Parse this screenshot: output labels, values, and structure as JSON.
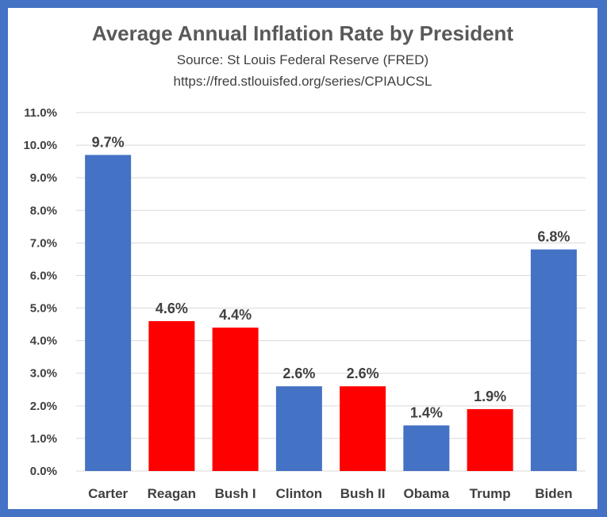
{
  "chart_data": {
    "type": "bar",
    "title": "Average Annual Inflation Rate by President",
    "subtitle_lines": [
      "Source: St Louis Federal Reserve (FRED)",
      "https://fred.stlouisfed.org/series/CPIAUCSL"
    ],
    "categories": [
      "Carter",
      "Reagan",
      "Bush I",
      "Clinton",
      "Bush II",
      "Obama",
      "Trump",
      "Biden"
    ],
    "values": [
      9.7,
      4.6,
      4.4,
      2.6,
      2.6,
      1.4,
      1.9,
      6.8
    ],
    "data_labels": [
      "9.7%",
      "4.6%",
      "4.4%",
      "2.6%",
      "2.6%",
      "1.4%",
      "1.9%",
      "6.8%"
    ],
    "bar_colors": [
      "#4472c4",
      "#ff0000",
      "#ff0000",
      "#4472c4",
      "#ff0000",
      "#4472c4",
      "#ff0000",
      "#4472c4"
    ],
    "xlabel": "",
    "ylabel": "",
    "ylim": [
      0,
      11
    ],
    "ytick_values": [
      0,
      1,
      2,
      3,
      4,
      5,
      6,
      7,
      8,
      9,
      10,
      11
    ],
    "ytick_labels": [
      "0.0%",
      "1.0%",
      "2.0%",
      "3.0%",
      "4.0%",
      "5.0%",
      "6.0%",
      "7.0%",
      "8.0%",
      "9.0%",
      "10.0%",
      "11.0%"
    ],
    "grid": true,
    "legend": "none",
    "colors": {
      "frame": "#4472c4",
      "democrat": "#4472c4",
      "republican": "#ff0000",
      "gridline": "#d9d9d9",
      "text": "#404040"
    }
  }
}
